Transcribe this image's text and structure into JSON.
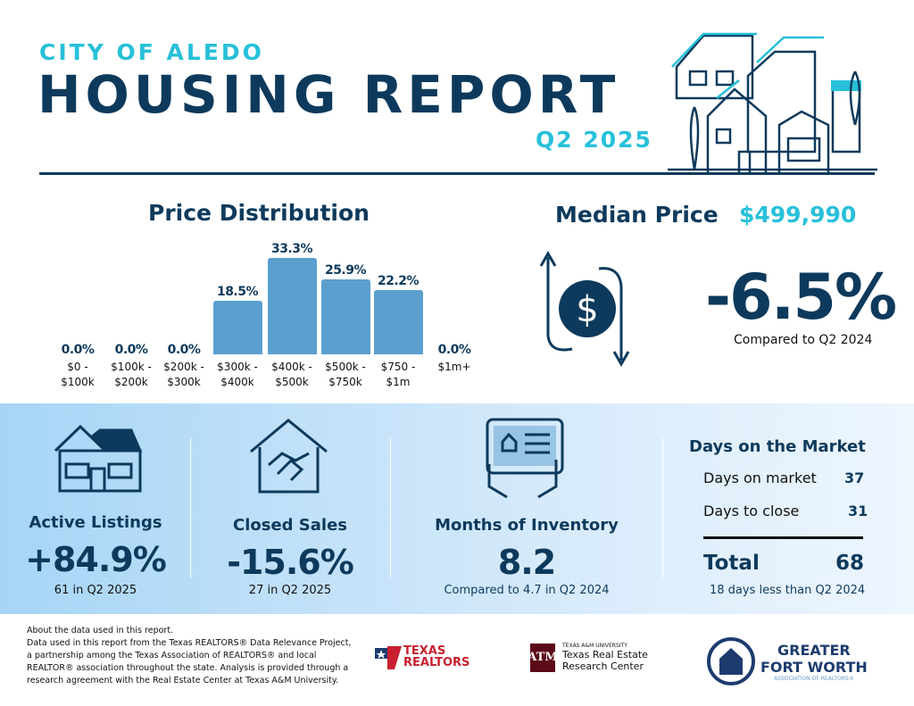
{
  "header": {
    "subtitle": "CITY OF ALEDO",
    "title": "HOUSING REPORT",
    "quarter": "Q2 2025"
  },
  "colors": {
    "navy": "#0d3a5c",
    "cyan": "#27c0d9",
    "bar": "#5b9fcf"
  },
  "chart_data": {
    "type": "bar",
    "title": "Price Distribution",
    "categories": [
      "$0 - $100k",
      "$100k - $200k",
      "$200k - $300k",
      "$300k - $400k",
      "$400k - $500k",
      "$500k - $750k",
      "$750 - $1m",
      "$1m+"
    ],
    "values": [
      0.0,
      0.0,
      0.0,
      18.5,
      33.3,
      25.9,
      22.2,
      0.0
    ],
    "labels": [
      "0.0%",
      "0.0%",
      "0.0%",
      "18.5%",
      "33.3%",
      "25.9%",
      "22.2%",
      "0.0%"
    ],
    "cat_lines": [
      [
        "$0 -",
        "$100k"
      ],
      [
        "$100k -",
        "$200k"
      ],
      [
        "$200k -",
        "$300k"
      ],
      [
        "$300k -",
        "$400k"
      ],
      [
        "$400k -",
        "$500k"
      ],
      [
        "$500k -",
        "$750k"
      ],
      [
        "$750 -",
        "$1m"
      ],
      [
        "$1m+",
        ""
      ]
    ]
  },
  "median": {
    "label": "Median Price",
    "value": "$499,990",
    "change": "-6.5%",
    "compare": "Compared to Q2 2024",
    "icon": "dollar-cycle-icon"
  },
  "metrics": [
    {
      "label": "Active Listings",
      "value": "+84.9%",
      "note": "61 in Q2 2025",
      "icon": "house-icon"
    },
    {
      "label": "Closed Sales",
      "value": "-15.6%",
      "note": "27 in Q2 2025",
      "icon": "handshake-house-icon"
    },
    {
      "label": "Months of Inventory",
      "value": "8.2",
      "note": "Compared to 4.7 in Q2 2024",
      "icon": "tablet-hands-icon"
    }
  ],
  "dom": {
    "title": "Days on the Market",
    "rows": [
      {
        "label": "Days on market",
        "value": "37"
      },
      {
        "label": "Days to close",
        "value": "31"
      }
    ],
    "total_label": "Total",
    "total_value": "68",
    "note": "18 days less than Q2 2024"
  },
  "footer": {
    "text_lines": [
      "About the data used in this report.",
      "Data used in this report from the Texas REALTORS® Data Relevance Project, a partnership among the Texas Association of REALTORS® and local REALTOR® association throughout the state. Analysis is provided through a research agreement with the Real Estate Center at Texas A&M University."
    ],
    "logo1": "TEXAS REALTORS",
    "logo2_small": "TEXAS A&M UNIVERSITY",
    "logo2_l1": "Texas Real Estate",
    "logo2_l2": "Research Center",
    "logo3_l1": "GREATER",
    "logo3_l2": "FORT WORTH",
    "logo3_l3": "ASSOCIATION OF REALTORS®"
  }
}
